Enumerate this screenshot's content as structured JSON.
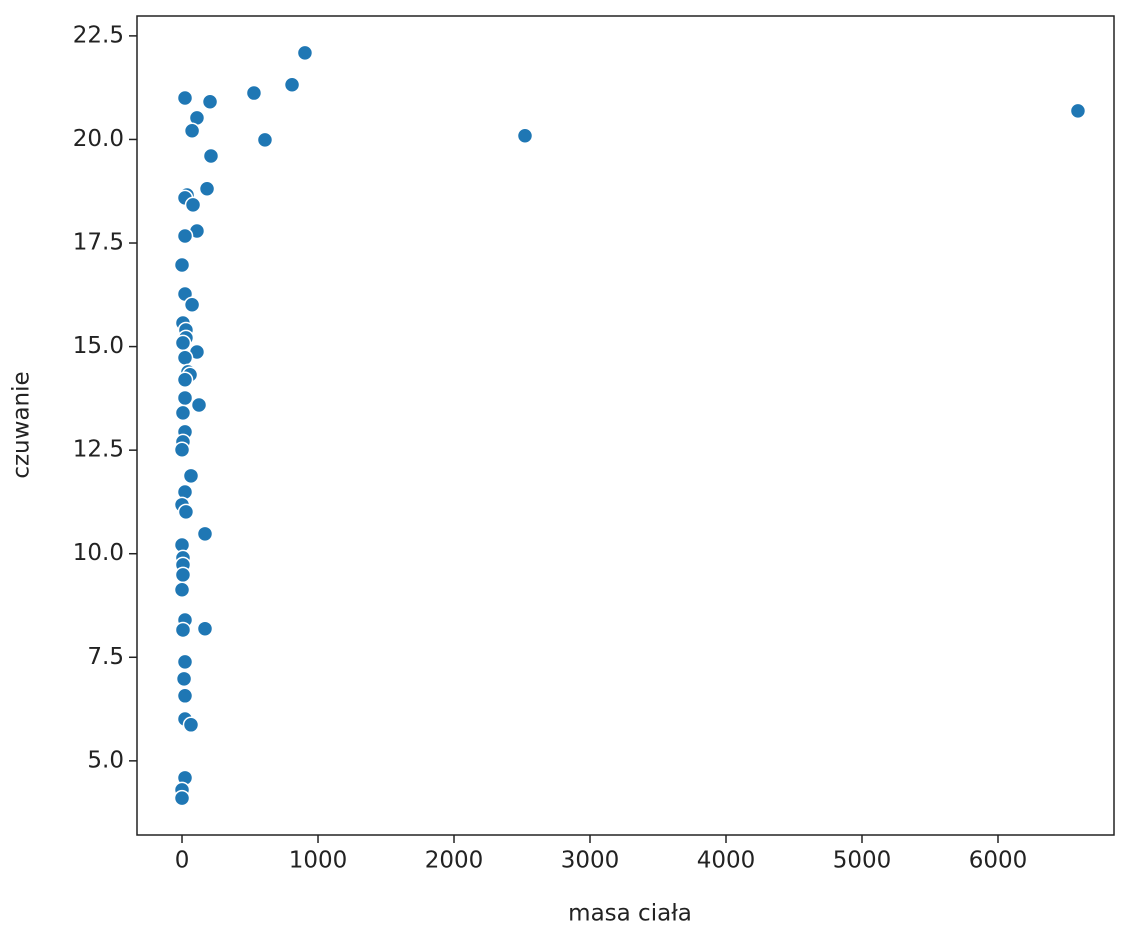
{
  "chart_data": {
    "type": "scatter",
    "x_label": "masa ciała",
    "y_label": "czuwanie",
    "series": [
      {
        "color": "#1f77b4",
        "x": [
          904,
          809,
          529,
          206,
          22,
          110,
          74,
          610,
          2522,
          6588,
          213,
          184,
          37,
          22,
          81,
          110,
          22,
          0,
          22,
          74,
          7,
          29,
          29,
          7,
          110,
          22,
          44,
          59,
          22,
          22,
          125,
          7,
          22,
          7,
          0,
          66,
          22,
          0,
          29,
          169,
          0,
          7,
          7,
          7,
          0,
          22,
          7,
          169,
          22,
          15,
          22,
          22,
          66,
          22,
          0,
          0
        ],
        "values": [
          22.09,
          21.32,
          21.12,
          20.91,
          21.0,
          20.52,
          20.21,
          19.99,
          20.09,
          20.69,
          19.6,
          18.81,
          18.66,
          18.59,
          18.42,
          17.79,
          17.67,
          16.97,
          16.27,
          16.01,
          15.57,
          15.4,
          15.21,
          15.09,
          14.87,
          14.73,
          14.39,
          14.32,
          14.2,
          13.76,
          13.59,
          13.4,
          12.94,
          12.7,
          12.51,
          11.88,
          11.49,
          11.18,
          11.01,
          10.48,
          10.21,
          9.9,
          9.73,
          9.49,
          9.13,
          8.4,
          8.16,
          8.19,
          7.39,
          6.98,
          6.57,
          6.01,
          5.87,
          4.59,
          4.3,
          4.1
        ]
      }
    ],
    "xlim": [
      -331,
      6853
    ],
    "ylim": [
      3.21,
      22.98
    ],
    "xticks": [
      0,
      1000,
      2000,
      3000,
      4000,
      5000,
      6000
    ],
    "yticks": [
      {
        "value": 5,
        "label": "5.0"
      },
      7.5,
      {
        "value": 10,
        "label": "10.0"
      },
      12.5,
      {
        "value": 15,
        "label": "15.0"
      },
      17.5,
      {
        "value": 20,
        "label": "20.0"
      },
      22.5
    ]
  }
}
